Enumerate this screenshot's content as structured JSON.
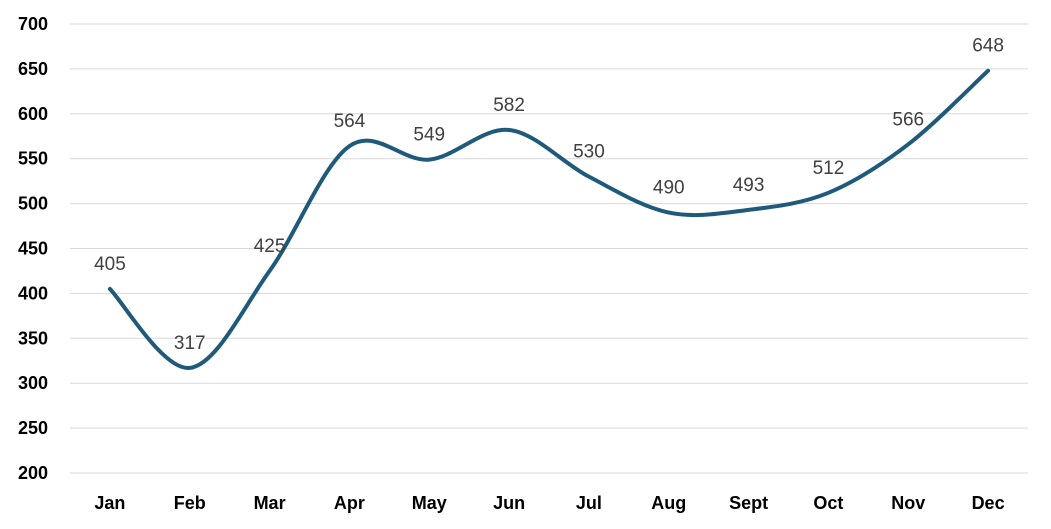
{
  "chart_data": {
    "type": "line",
    "title": "",
    "xlabel": "",
    "ylabel": "",
    "categories": [
      "Jan",
      "Feb",
      "Mar",
      "Apr",
      "May",
      "Jun",
      "Jul",
      "Aug",
      "Sept",
      "Oct",
      "Nov",
      "Dec"
    ],
    "series": [
      {
        "values": [
          405,
          317,
          425,
          564,
          549,
          582,
          530,
          490,
          493,
          512,
          566,
          648
        ]
      }
    ],
    "ylim": [
      200,
      700
    ],
    "yticks": [
      "200",
      "250",
      "300",
      "350",
      "400",
      "450",
      "500",
      "550",
      "600",
      "650",
      "700"
    ],
    "smooth": true,
    "grid": true,
    "legend": "none",
    "line_color": "#1f5a7a"
  }
}
